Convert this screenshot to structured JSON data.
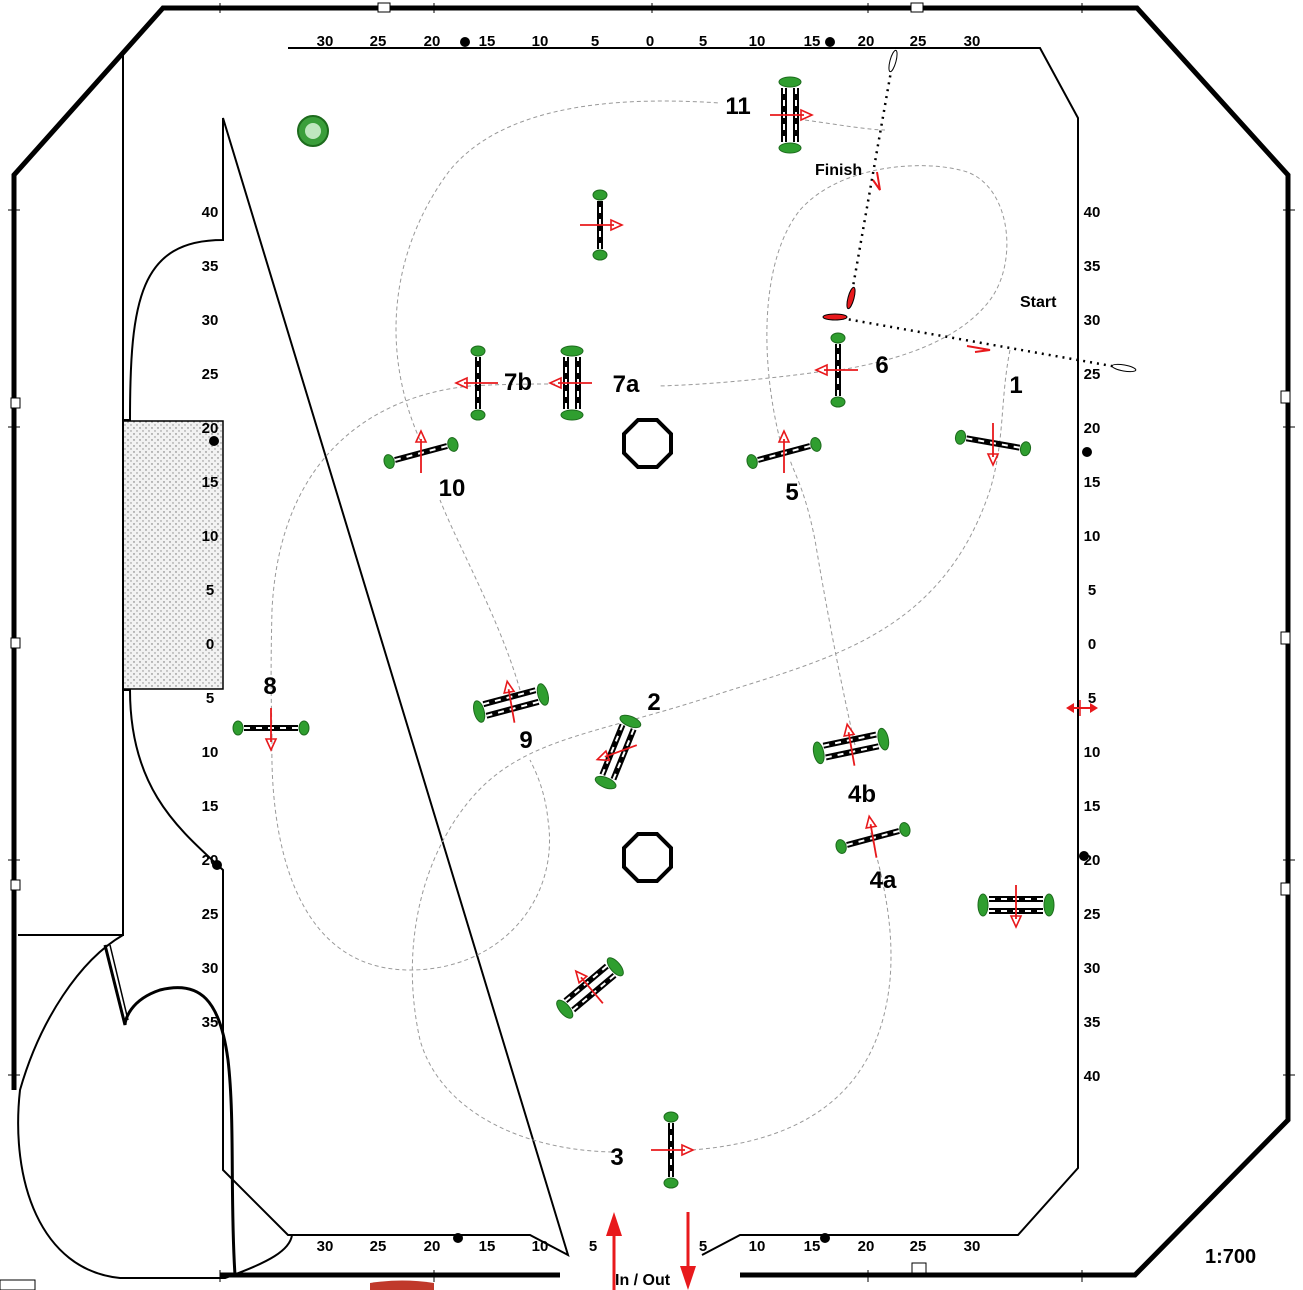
{
  "ruler": {
    "top": [
      "30",
      "25",
      "20",
      "15",
      "10",
      "5",
      "0",
      "5",
      "10",
      "15",
      "20",
      "25",
      "30"
    ],
    "bottom": [
      "30",
      "25",
      "20",
      "15",
      "10",
      "5",
      "5",
      "10",
      "15",
      "20",
      "25",
      "30"
    ],
    "left": [
      "40",
      "35",
      "30",
      "25",
      "20",
      "15",
      "10",
      "5",
      "0",
      "5",
      "10",
      "15",
      "20",
      "25",
      "30",
      "35"
    ],
    "right": [
      "40",
      "35",
      "30",
      "25",
      "20",
      "15",
      "10",
      "5",
      "0",
      "5",
      "10",
      "15",
      "20",
      "25",
      "30",
      "35",
      "40"
    ]
  },
  "jumps": [
    "11",
    "7b",
    "7a",
    "6",
    "1",
    "10",
    "5",
    "8",
    "2",
    "9",
    "4b",
    "4a",
    "3"
  ],
  "labels": {
    "start": "Start",
    "finish": "Finish",
    "in_out": "In / Out",
    "scale": "1:700"
  },
  "colors": {
    "arrow": "#e8191c",
    "shrub": "#2f9e2f",
    "path": "#9a9a9a",
    "wall": "#000000"
  }
}
